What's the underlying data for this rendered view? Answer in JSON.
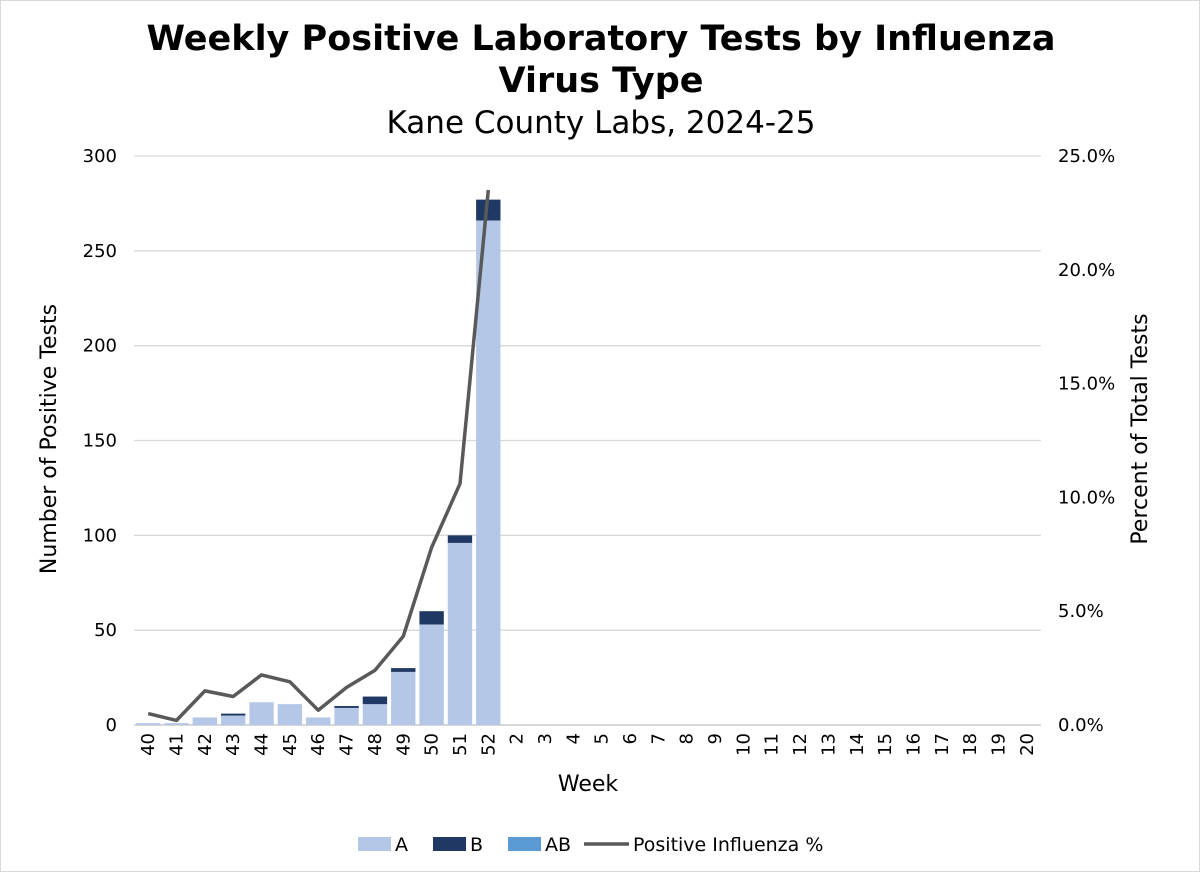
{
  "chart_data": {
    "type": "bar",
    "title_line1": "Weekly Positive Laboratory Tests by Influenza",
    "title_line2": "Virus Type",
    "subtitle": "Kane County Labs, 2024-25",
    "xlabel": "Week",
    "ylabel": "Number of Positive Tests",
    "y2label": "Percent of Total Tests",
    "ylim": [
      0,
      300
    ],
    "y2lim": [
      0,
      25
    ],
    "yticks": [
      "0",
      "50",
      "100",
      "150",
      "200",
      "250",
      "300"
    ],
    "y2ticks": [
      "0.0%",
      "5.0%",
      "10.0%",
      "15.0%",
      "20.0%",
      "25.0%"
    ],
    "grid": true,
    "legend_position": "bottom",
    "categories": [
      "40",
      "41",
      "42",
      "43",
      "44",
      "45",
      "46",
      "47",
      "48",
      "49",
      "50",
      "51",
      "52",
      "2",
      "3",
      "4",
      "5",
      "6",
      "7",
      "8",
      "9",
      "10",
      "11",
      "12",
      "13",
      "14",
      "15",
      "16",
      "17",
      "18",
      "19",
      "20"
    ],
    "series": [
      {
        "name": "A",
        "kind": "bar",
        "color": "#b4c7e7",
        "values": [
          1,
          1,
          4,
          5,
          12,
          11,
          4,
          9,
          11,
          28,
          53,
          96,
          266,
          null,
          null,
          null,
          null,
          null,
          null,
          null,
          null,
          null,
          null,
          null,
          null,
          null,
          null,
          null,
          null,
          null,
          null,
          null
        ]
      },
      {
        "name": "B",
        "kind": "bar",
        "color": "#203864",
        "values": [
          0,
          0,
          0,
          1,
          0,
          0,
          0,
          1,
          4,
          2,
          7,
          4,
          11,
          null,
          null,
          null,
          null,
          null,
          null,
          null,
          null,
          null,
          null,
          null,
          null,
          null,
          null,
          null,
          null,
          null,
          null,
          null
        ]
      },
      {
        "name": "AB",
        "kind": "bar",
        "color": "#5b9bd5",
        "values": [
          0,
          0,
          0,
          0,
          0,
          0,
          0,
          0,
          0,
          0,
          0,
          0,
          0,
          null,
          null,
          null,
          null,
          null,
          null,
          null,
          null,
          null,
          null,
          null,
          null,
          null,
          null,
          null,
          null,
          null,
          null,
          null
        ]
      },
      {
        "name": "Positive Influenza %",
        "kind": "line",
        "axis": "right",
        "color": "#595959",
        "values": [
          0.5,
          0.2,
          1.5,
          1.25,
          2.2,
          1.9,
          0.65,
          1.65,
          2.4,
          3.9,
          7.8,
          10.6,
          23.5,
          null,
          null,
          null,
          null,
          null,
          null,
          null,
          null,
          null,
          null,
          null,
          null,
          null,
          null,
          null,
          null,
          null,
          null,
          null
        ]
      }
    ]
  }
}
